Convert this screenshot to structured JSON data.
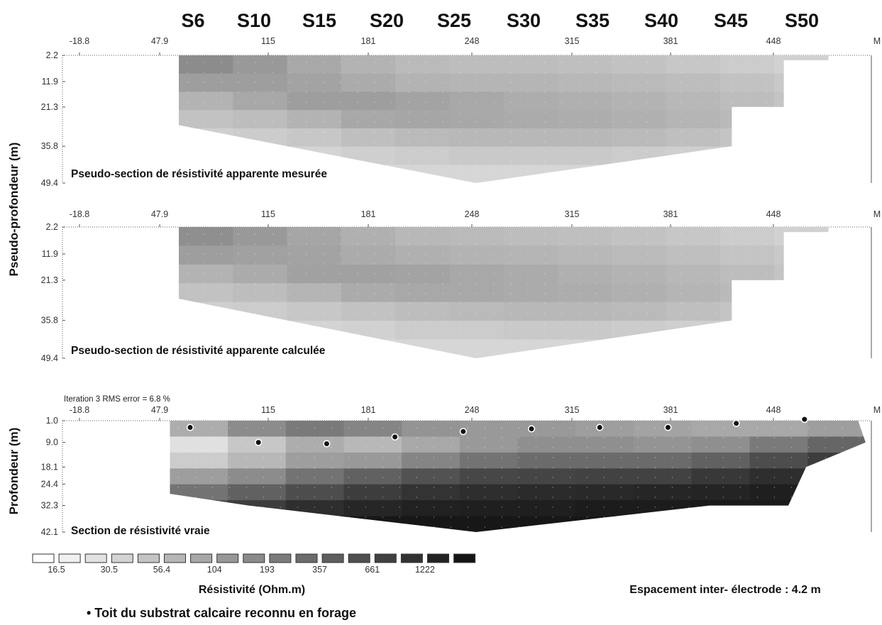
{
  "stations": [
    "S6",
    "S10",
    "S15",
    "S20",
    "S25",
    "S30",
    "S35",
    "S40",
    "S45",
    "S50"
  ],
  "axis_unit": "M",
  "y_axis_labels": {
    "pseudo": "Pseudo-profondeur (m)",
    "true": "Profondeur (m)"
  },
  "chart_data": [
    {
      "type": "heatmap",
      "title": "Pseudo-section de résistivité apparente mesurée",
      "xlabel": "M",
      "ylabel": "Pseudo-profondeur (m)",
      "x_ticks": [
        "-18.8",
        "47.9",
        "115",
        "181",
        "248",
        "315",
        "381",
        "448"
      ],
      "y_ticks": [
        "2.2",
        "11.9",
        "21.3",
        "35.8",
        "49.4"
      ],
      "xlim": [
        -18.8,
        515
      ],
      "ylim": [
        2.2,
        49.4
      ],
      "profile": [
        [
          48,
          2.2
        ],
        [
          485,
          2.2
        ],
        [
          485,
          4.0
        ],
        [
          455,
          4.0
        ],
        [
          455,
          21.3
        ],
        [
          420,
          21.3
        ],
        [
          420,
          35.8
        ],
        [
          248,
          49.4
        ],
        [
          48,
          28.0
        ]
      ],
      "shading": [
        [
          0.55,
          0.62,
          0.7,
          0.76,
          0.81,
          0.85,
          0.88
        ],
        [
          0.6,
          0.62,
          0.66,
          0.74,
          0.8,
          0.84,
          0.87
        ],
        [
          0.66,
          0.64,
          0.62,
          0.7,
          0.78,
          0.83,
          0.86
        ],
        [
          0.7,
          0.67,
          0.62,
          0.66,
          0.75,
          0.81,
          0.85
        ],
        [
          0.73,
          0.7,
          0.64,
          0.65,
          0.73,
          0.8,
          0.84
        ],
        [
          0.74,
          0.71,
          0.66,
          0.66,
          0.72,
          0.79,
          0.84
        ],
        [
          0.74,
          0.71,
          0.68,
          0.67,
          0.72,
          0.79,
          0.84
        ],
        [
          0.75,
          0.72,
          0.69,
          0.68,
          0.72,
          0.79,
          0.84
        ],
        [
          0.76,
          0.73,
          0.7,
          0.69,
          0.73,
          0.8,
          0.85
        ],
        [
          0.78,
          0.74,
          0.72,
          0.71,
          0.75,
          0.81,
          0.85
        ],
        [
          0.8,
          0.76,
          0.74,
          0.73,
          0.77,
          0.82,
          0.86
        ],
        [
          0.82,
          0.79,
          0.77,
          0.76,
          0.79,
          0.83,
          0.86
        ]
      ]
    },
    {
      "type": "heatmap",
      "title": "Pseudo-section de résistivité apparente calculée",
      "xlabel": "M",
      "ylabel": "Pseudo-profondeur (m)",
      "x_ticks": [
        "-18.8",
        "47.9",
        "115",
        "181",
        "248",
        "315",
        "381",
        "448"
      ],
      "y_ticks": [
        "2.2",
        "11.9",
        "21.3",
        "35.8",
        "49.4"
      ],
      "xlim": [
        -18.8,
        515
      ],
      "ylim": [
        2.2,
        49.4
      ],
      "profile": [
        [
          48,
          2.2
        ],
        [
          485,
          2.2
        ],
        [
          485,
          4.0
        ],
        [
          455,
          4.0
        ],
        [
          455,
          21.3
        ],
        [
          420,
          21.3
        ],
        [
          420,
          35.8
        ],
        [
          248,
          49.4
        ],
        [
          48,
          28.0
        ]
      ],
      "shading": [
        [
          0.56,
          0.62,
          0.7,
          0.76,
          0.81,
          0.85,
          0.88
        ],
        [
          0.6,
          0.63,
          0.67,
          0.74,
          0.8,
          0.84,
          0.87
        ],
        [
          0.65,
          0.64,
          0.63,
          0.71,
          0.78,
          0.83,
          0.86
        ],
        [
          0.69,
          0.67,
          0.63,
          0.67,
          0.76,
          0.82,
          0.85
        ],
        [
          0.72,
          0.69,
          0.64,
          0.66,
          0.74,
          0.8,
          0.84
        ],
        [
          0.73,
          0.7,
          0.66,
          0.66,
          0.73,
          0.8,
          0.84
        ],
        [
          0.74,
          0.71,
          0.67,
          0.67,
          0.72,
          0.79,
          0.84
        ],
        [
          0.75,
          0.72,
          0.69,
          0.68,
          0.72,
          0.79,
          0.84
        ],
        [
          0.76,
          0.73,
          0.7,
          0.69,
          0.73,
          0.8,
          0.85
        ],
        [
          0.78,
          0.75,
          0.72,
          0.71,
          0.75,
          0.81,
          0.85
        ],
        [
          0.8,
          0.77,
          0.74,
          0.73,
          0.77,
          0.82,
          0.86
        ],
        [
          0.82,
          0.79,
          0.77,
          0.76,
          0.79,
          0.83,
          0.86
        ]
      ]
    },
    {
      "type": "heatmap",
      "title": "Section de résistivité vraie",
      "annotation": "Iteration 3 RMS error = 6.8 %",
      "xlabel": "M",
      "ylabel": "Profondeur (m)",
      "x_ticks": [
        "-18.8",
        "47.9",
        "115",
        "181",
        "248",
        "315",
        "381",
        "448"
      ],
      "y_ticks": [
        "1.0",
        "9.0",
        "18.1",
        "24.4",
        "32.3",
        "42.1"
      ],
      "xlim": [
        -18.8,
        515
      ],
      "ylim": [
        1.0,
        42.1
      ],
      "profile": [
        [
          42,
          1.0
        ],
        [
          505,
          1.0
        ],
        [
          510,
          9.0
        ],
        [
          470,
          18.1
        ],
        [
          458,
          32.3
        ],
        [
          405,
          32.3
        ],
        [
          248,
          42.1
        ],
        [
          95,
          32.3
        ],
        [
          42,
          28.0
        ]
      ],
      "shading": [
        [
          0.68,
          0.88,
          0.8,
          0.62,
          0.45,
          0.3,
          0.15
        ],
        [
          0.55,
          0.78,
          0.72,
          0.55,
          0.38,
          0.24,
          0.12
        ],
        [
          0.48,
          0.68,
          0.62,
          0.45,
          0.3,
          0.18,
          0.1
        ],
        [
          0.52,
          0.72,
          0.6,
          0.38,
          0.24,
          0.15,
          0.09
        ],
        [
          0.58,
          0.66,
          0.52,
          0.32,
          0.2,
          0.13,
          0.09
        ],
        [
          0.6,
          0.6,
          0.45,
          0.28,
          0.18,
          0.12,
          0.09
        ],
        [
          0.6,
          0.56,
          0.42,
          0.27,
          0.17,
          0.12,
          0.09
        ],
        [
          0.62,
          0.56,
          0.42,
          0.26,
          0.16,
          0.11,
          0.09
        ],
        [
          0.64,
          0.58,
          0.42,
          0.26,
          0.15,
          0.11,
          0.09
        ],
        [
          0.66,
          0.56,
          0.38,
          0.22,
          0.14,
          0.1,
          0.09
        ],
        [
          0.66,
          0.48,
          0.3,
          0.18,
          0.12,
          0.1,
          0.09
        ],
        [
          0.62,
          0.4,
          0.24,
          0.15,
          0.11,
          0.09,
          0.09
        ]
      ],
      "boreholes": [
        {
          "station": "S6",
          "x": 55,
          "depth": 3.5
        },
        {
          "station": "S10",
          "x": 115,
          "depth": 9.0
        },
        {
          "station": "S15",
          "x": 181,
          "depth": 9.5
        },
        {
          "station": "S20",
          "x": 248,
          "depth": 7.0
        },
        {
          "station": "S25",
          "x": 315,
          "depth": 5.0
        },
        {
          "station": "S30",
          "x": 381,
          "depth": 4.0
        },
        {
          "station": "S35",
          "x": 448,
          "depth": 3.5
        },
        {
          "station": "S40",
          "x": 515,
          "depth": 3.5
        },
        {
          "station": "S45",
          "x": 580,
          "depth": 2.0
        },
        {
          "station": "S50",
          "x": 648,
          "depth": 0.5
        }
      ]
    }
  ],
  "legend": {
    "title": "Résistivité (Ohm.m)",
    "swatch_count": 17,
    "labels": [
      "16.5",
      "30.5",
      "56.4",
      "104",
      "193",
      "357",
      "661",
      "1222"
    ]
  },
  "spacing_note": "Espacement inter- électrode : 4.2 m",
  "borehole_note": "• Toit du substrat calcaire reconnu en forage"
}
